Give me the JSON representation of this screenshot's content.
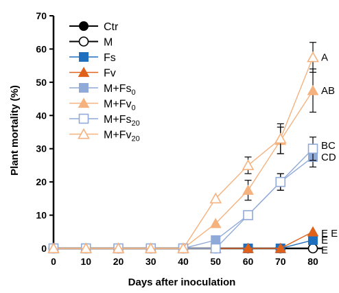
{
  "chart_data": {
    "type": "line",
    "xlabel": "Days after inoculation",
    "ylabel": "Plant mortality (%)",
    "xlim": [
      0,
      80
    ],
    "ylim": [
      0,
      70
    ],
    "x": [
      0,
      10,
      20,
      30,
      40,
      50,
      60,
      70,
      80
    ],
    "x_ticks": [
      "0",
      "10",
      "20",
      "30",
      "40",
      "50",
      "60",
      "70",
      "80"
    ],
    "y_ticks": [
      "0",
      "10",
      "20",
      "30",
      "40",
      "50",
      "60",
      "70"
    ],
    "grid": false,
    "legend_position": "top-left",
    "series": [
      {
        "name": "Ctr",
        "name_parts": [
          {
            "t": "Ctr",
            "sub": false
          }
        ],
        "marker": "circle",
        "filled": true,
        "color": "#000000",
        "values": [
          0,
          0,
          0,
          0,
          0,
          0,
          0,
          0,
          0
        ],
        "error": [
          0,
          0,
          0,
          0,
          0,
          0,
          0,
          0,
          0
        ]
      },
      {
        "name": "M",
        "name_parts": [
          {
            "t": "M",
            "sub": false
          }
        ],
        "marker": "circle",
        "filled": false,
        "color": "#000000",
        "values": [
          0,
          0,
          0,
          0,
          0,
          0,
          0,
          0,
          0
        ],
        "error": [
          0,
          0,
          0,
          0,
          0,
          0,
          0,
          0,
          0
        ]
      },
      {
        "name": "Fs",
        "name_parts": [
          {
            "t": "Fs",
            "sub": false
          }
        ],
        "marker": "square",
        "filled": true,
        "color": "#1f6fbf",
        "values": [
          0,
          0,
          0,
          0,
          0,
          0,
          0,
          0,
          2.5
        ],
        "error": [
          0,
          0,
          0,
          0,
          0,
          0,
          0,
          0,
          0
        ]
      },
      {
        "name": "Fv",
        "name_parts": [
          {
            "t": "Fv",
            "sub": false
          }
        ],
        "marker": "triangle",
        "filled": true,
        "color": "#e0621a",
        "values": [
          0,
          0,
          0,
          0,
          0,
          0,
          0,
          0,
          5
        ],
        "error": [
          0,
          0,
          0,
          0,
          0,
          0,
          0,
          0,
          0
        ]
      },
      {
        "name": "M+Fs0",
        "name_parts": [
          {
            "t": "M+Fs",
            "sub": false
          },
          {
            "t": "0",
            "sub": true
          }
        ],
        "marker": "square",
        "filled": true,
        "color": "#8fa9d8",
        "values": [
          0,
          0,
          0,
          0,
          0,
          2.5,
          10,
          20,
          27.5
        ],
        "error": [
          0,
          0,
          0,
          0,
          0,
          0,
          0,
          2.5,
          3
        ]
      },
      {
        "name": "M+Fv0",
        "name_parts": [
          {
            "t": "M+Fv",
            "sub": false
          },
          {
            "t": "0",
            "sub": true
          }
        ],
        "marker": "triangle",
        "filled": true,
        "color": "#f5b27e",
        "values": [
          0,
          0,
          0,
          0,
          0,
          7.5,
          17.5,
          32.5,
          47.5
        ],
        "error": [
          0,
          0,
          0,
          0,
          0,
          0,
          3,
          4,
          6.5
        ]
      },
      {
        "name": "M+Fs20",
        "name_parts": [
          {
            "t": "M+Fs",
            "sub": false
          },
          {
            "t": "20",
            "sub": true
          }
        ],
        "marker": "square",
        "filled": false,
        "color": "#8fa9d8",
        "values": [
          0,
          0,
          0,
          0,
          0,
          0,
          10,
          20,
          30
        ],
        "error": [
          0,
          0,
          0,
          0,
          0,
          0,
          0,
          2.5,
          3.5
        ]
      },
      {
        "name": "M+Fv20",
        "name_parts": [
          {
            "t": "M+Fv",
            "sub": false
          },
          {
            "t": "20",
            "sub": true
          }
        ],
        "marker": "triangle",
        "filled": false,
        "color": "#f5b27e",
        "values": [
          0,
          0,
          0,
          0,
          0,
          15,
          25,
          33,
          57.5
        ],
        "error": [
          0,
          0,
          0,
          0,
          0,
          0,
          2.5,
          4.5,
          4.5
        ]
      }
    ],
    "annotations": [
      {
        "text": "A",
        "x": 80,
        "y": 57.5
      },
      {
        "text": "AB",
        "x": 80,
        "y": 47.5
      },
      {
        "text": "BC",
        "x": 80,
        "y": 31
      },
      {
        "text": "CD",
        "x": 80,
        "y": 27.5
      },
      {
        "text": "E E",
        "x": 80,
        "y": 4.5
      },
      {
        "text": "E",
        "x": 80,
        "y": 2.5
      },
      {
        "text": "E",
        "x": 80,
        "y": -0.5
      }
    ]
  }
}
